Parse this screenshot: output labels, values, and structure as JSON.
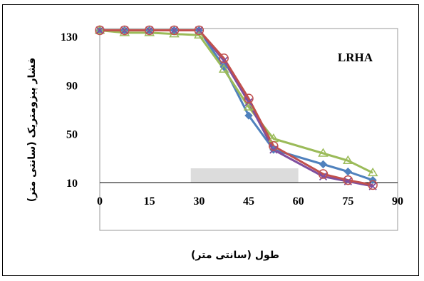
{
  "chart_data": {
    "type": "line",
    "xlabel": "طول (سانتی متر)",
    "ylabel": "فشار پیزومتریک (سانتی متر)",
    "annotation": "LRHA",
    "x_ticks": [
      0,
      15,
      30,
      45,
      60,
      75,
      90
    ],
    "y_ticks": [
      10,
      50,
      90,
      130
    ],
    "xlim": [
      0,
      90
    ],
    "ylim": [
      -30,
      140
    ],
    "shaded_region": {
      "x": [
        27.5,
        60
      ],
      "y": [
        10,
        0
      ]
    },
    "grid": false,
    "series": [
      {
        "marker": "diamond",
        "color": "#4f81bd",
        "x": [
          0,
          7.5,
          15,
          22.5,
          30,
          37.5,
          45,
          52.5,
          67.5,
          75,
          82.5
        ],
        "y": [
          135,
          135,
          135,
          135,
          135,
          105,
          65,
          37,
          25,
          19,
          12
        ]
      },
      {
        "marker": "triangle",
        "color": "#9bbb59",
        "x": [
          0,
          7.5,
          15,
          22.5,
          30,
          37.5,
          45,
          52.5,
          67.5,
          75,
          82.5
        ],
        "y": [
          135,
          133,
          133,
          132,
          131,
          103,
          72,
          46,
          34,
          28,
          18
        ]
      },
      {
        "marker": "x",
        "color": "#7f4fa0",
        "x": [
          0,
          7.5,
          15,
          22.5,
          30,
          37.5,
          45,
          52.5,
          67.5,
          75,
          82.5
        ],
        "y": [
          135,
          135,
          135,
          135,
          135,
          110,
          76,
          37,
          15,
          11,
          7
        ]
      },
      {
        "marker": "circle",
        "color": "#c0504d",
        "x": [
          0,
          7.5,
          15,
          22.5,
          30,
          37.5,
          45,
          52.5,
          67.5,
          75,
          82.5
        ],
        "y": [
          135,
          135,
          135,
          135,
          135,
          112,
          79,
          40,
          17,
          12,
          8
        ]
      }
    ]
  }
}
